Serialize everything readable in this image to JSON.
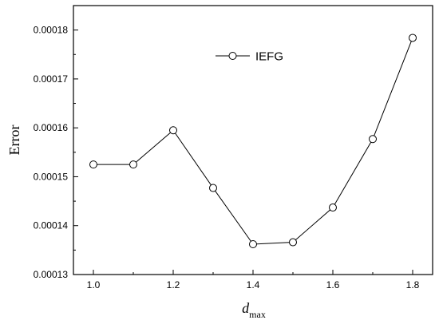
{
  "chart_data": {
    "type": "line",
    "title": "",
    "xlabel_main": "d",
    "xlabel_sub": "max",
    "ylabel": "Error",
    "xlim": [
      0.95,
      1.85
    ],
    "ylim": [
      0.00013,
      0.000185
    ],
    "xticks": [
      1.0,
      1.2,
      1.4,
      1.6,
      1.8
    ],
    "xtick_labels": [
      "1.0",
      "1.2",
      "1.4",
      "1.6",
      "1.8"
    ],
    "yticks": [
      0.00013,
      0.00014,
      0.00015,
      0.00016,
      0.00017,
      0.00018
    ],
    "ytick_labels": [
      "0.00013",
      "0.00014",
      "0.00015",
      "0.00016",
      "0.00017",
      "0.00018"
    ],
    "legend_position": "top-center",
    "grid": false,
    "series": [
      {
        "name": "IEFG",
        "x": [
          1.0,
          1.1,
          1.2,
          1.3,
          1.4,
          1.5,
          1.6,
          1.7,
          1.8
        ],
        "y": [
          0.0001525,
          0.0001525,
          0.0001595,
          0.0001477,
          0.0001362,
          0.0001366,
          0.0001437,
          0.0001577,
          0.0001784
        ]
      }
    ]
  }
}
